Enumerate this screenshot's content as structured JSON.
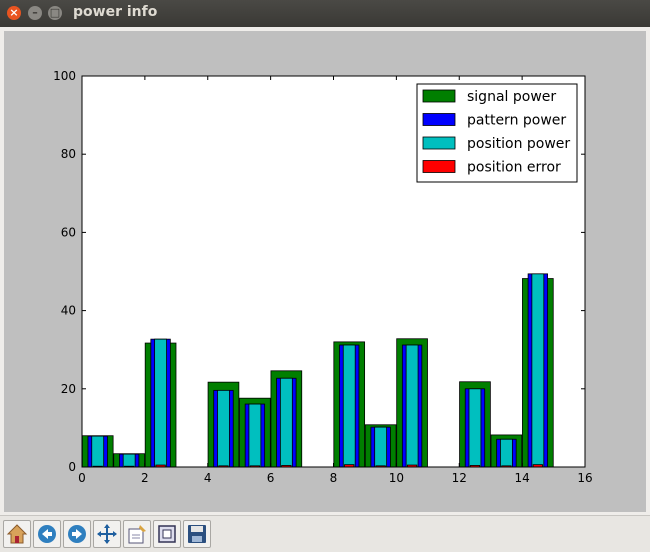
{
  "window": {
    "title": "power info"
  },
  "toolbar": {
    "buttons": [
      "home-icon",
      "back-icon",
      "forward-icon",
      "pan-icon",
      "configure-icon",
      "zoom-rect-icon",
      "save-icon"
    ]
  },
  "chart_data": {
    "type": "bar",
    "title": "",
    "xlabel": "",
    "ylabel": "",
    "xlim": [
      0,
      16
    ],
    "ylim": [
      0,
      100
    ],
    "xticks": [
      0,
      2,
      4,
      6,
      8,
      10,
      12,
      14,
      16
    ],
    "yticks": [
      0,
      20,
      40,
      60,
      80,
      100
    ],
    "legend_position": "top-right",
    "categories": [
      0,
      1,
      2,
      3,
      4,
      5,
      6,
      7,
      8,
      9,
      10,
      11,
      12,
      13,
      14
    ],
    "series": [
      {
        "name": "signal power",
        "color": "#007f00",
        "values": [
          8,
          3.4,
          31.7,
          0,
          21.7,
          17.6,
          24.6,
          0,
          32,
          10.8,
          32.8,
          0,
          21.8,
          8.2,
          48.2
        ]
      },
      {
        "name": "pattern power",
        "color": "#0000ff",
        "values": [
          7.9,
          3.3,
          32.7,
          0,
          19.6,
          16.1,
          22.7,
          0,
          31.2,
          10.2,
          31.2,
          0,
          20,
          7.1,
          49.4
        ]
      },
      {
        "name": "position power",
        "color": "#00bfbf",
        "values": [
          7.9,
          3.3,
          32.7,
          0,
          19.6,
          16.1,
          22.7,
          0,
          31.2,
          10.2,
          31.2,
          0,
          20,
          7.1,
          49.4
        ]
      },
      {
        "name": "position error",
        "color": "#ff0000",
        "values": [
          0.2,
          0.2,
          0.5,
          0,
          0.3,
          0.3,
          0.4,
          0,
          0.6,
          0.3,
          0.5,
          0,
          0.4,
          0.3,
          0.6
        ]
      }
    ]
  }
}
